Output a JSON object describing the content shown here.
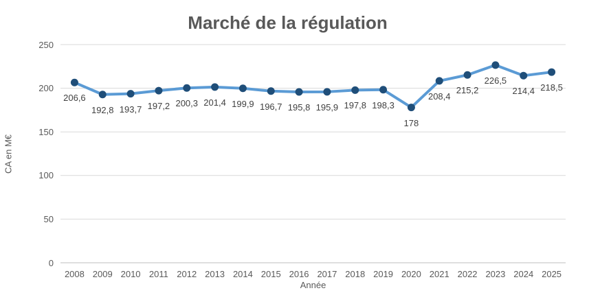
{
  "chart_data": {
    "type": "line",
    "title": "Marché de la régulation",
    "xlabel": "Année",
    "ylabel": "CA en M€",
    "categories": [
      "2008",
      "2009",
      "2010",
      "2011",
      "2012",
      "2013",
      "2014",
      "2015",
      "2016",
      "2017",
      "2018",
      "2019",
      "2020",
      "2021",
      "2022",
      "2023",
      "2024",
      "2025"
    ],
    "series": [
      {
        "name": "CA en M€",
        "values": [
          206.6,
          192.8,
          193.7,
          197.2,
          200.3,
          201.4,
          199.9,
          196.7,
          195.8,
          195.9,
          197.8,
          198.3,
          178,
          208.4,
          215.2,
          226.5,
          214.4,
          218.5
        ],
        "labels": [
          "206,6",
          "192,8",
          "193,7",
          "197,2",
          "200,3",
          "201,4",
          "199,9",
          "196,7",
          "195,8",
          "195,9",
          "197,8",
          "198,3",
          "178",
          "208,4",
          "215,2",
          "226,5",
          "214,4",
          "218,5"
        ]
      }
    ],
    "ylim": [
      0,
      250
    ],
    "yticks": [
      0,
      50,
      100,
      150,
      200,
      250
    ],
    "grid": true,
    "legend": false,
    "colors": {
      "line": "#5B9BD5",
      "marker": "#1F4E79",
      "gridline": "#D9D9D9",
      "axis_line": "#BFBFBF",
      "title_text": "#595959",
      "tick_text": "#595959",
      "data_label_text": "#404040"
    }
  }
}
